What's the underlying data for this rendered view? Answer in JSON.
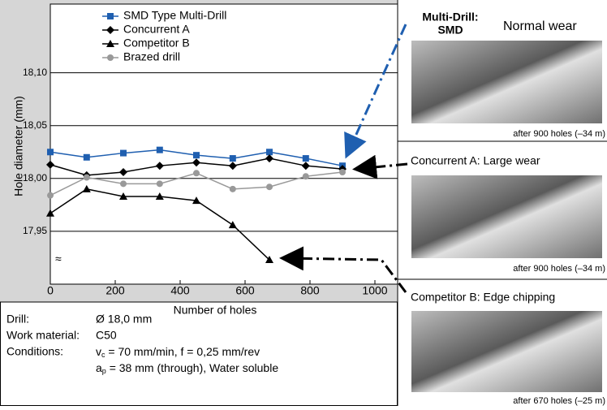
{
  "chart_data": {
    "type": "line",
    "x_label": "Number of holes",
    "y_label": "Hole diameter (mm)",
    "xlim": [
      0,
      1070
    ],
    "ylim": [
      17.9,
      18.165
    ],
    "xticks": [
      0,
      200,
      400,
      600,
      800,
      1000
    ],
    "yticks": [
      {
        "value": 17.95,
        "label": "17,95"
      },
      {
        "value": 18.0,
        "label": "18,00"
      },
      {
        "value": 18.05,
        "label": "18,05"
      },
      {
        "value": 18.1,
        "label": "18,10"
      }
    ],
    "axis_break": "≈",
    "grid": true,
    "x": [
      0,
      112,
      225,
      337,
      450,
      562,
      675,
      787,
      900
    ],
    "series": [
      {
        "name": "SMD Type Multi-Drill",
        "color": "#1f5fb0",
        "marker": "square",
        "values": [
          18.025,
          18.02,
          18.024,
          18.027,
          18.022,
          18.019,
          18.025,
          18.019,
          18.012
        ]
      },
      {
        "name": "Concurrent A",
        "color": "#000000",
        "marker": "diamond",
        "values": [
          18.013,
          18.003,
          18.006,
          18.012,
          18.015,
          18.012,
          18.019,
          18.012,
          18.009
        ]
      },
      {
        "name": "Competitor B",
        "color": "#000000",
        "marker": "triangle",
        "values": [
          17.967,
          17.99,
          17.983,
          17.983,
          17.979,
          17.956,
          17.923,
          null,
          null
        ]
      },
      {
        "name": "Brazed drill",
        "color": "#999999",
        "marker": "circle",
        "values": [
          17.984,
          18.001,
          17.995,
          17.995,
          18.005,
          17.99,
          17.992,
          18.002,
          18.006
        ]
      }
    ]
  },
  "panels": [
    {
      "brand": "Multi-Drill:",
      "brand2": "SMD",
      "title": "Normal wear",
      "caption": "after 900 holes (–34 m)"
    },
    {
      "title": "Concurrent A: Large wear",
      "caption": "after 900 holes (–34 m)"
    },
    {
      "title": "Competitor B: Edge chipping",
      "caption": "after 670 holes (–25 m)"
    }
  ],
  "specs": {
    "drill_label": "Drill:",
    "drill": "Ø 18,0 mm",
    "material_label": "Work material:",
    "material": "C50",
    "conditions_label": "Conditions:",
    "vc_sym": "v",
    "vc_sub": "c",
    "vc_rest": " = 70 mm/min,  f = 0,25 mm/rev",
    "ap_sym": "a",
    "ap_sub": "p",
    "ap_rest": " = 38 mm (through), Water soluble"
  }
}
